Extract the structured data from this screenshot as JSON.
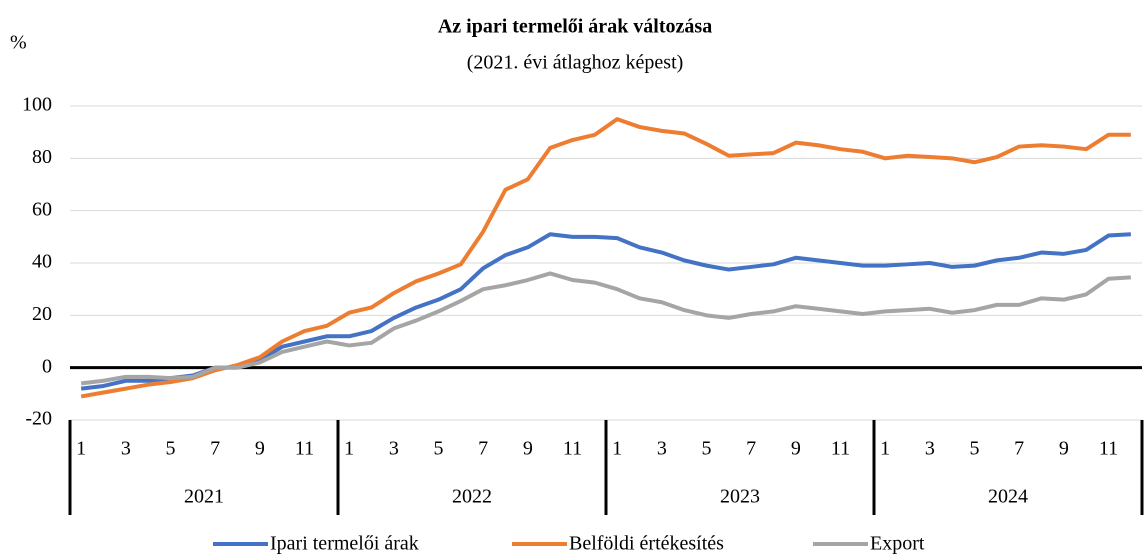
{
  "chart_data": {
    "type": "line",
    "title": "Az ipari termelői árak változása",
    "subtitle": "(2021. évi átlaghoz képest)",
    "y_label": "%",
    "categories": [
      "1",
      null,
      "3",
      null,
      "5",
      null,
      "7",
      null,
      "9",
      null,
      "11",
      null,
      "1",
      null,
      "3",
      null,
      "5",
      null,
      "7",
      null,
      "9",
      null,
      "11",
      null,
      "1",
      null,
      "3",
      null,
      "5",
      null,
      "7",
      null,
      "9",
      null,
      "11",
      null,
      "1",
      null,
      "3",
      null,
      "5",
      null,
      "7",
      null,
      "9",
      null,
      "11",
      null
    ],
    "year_groups": [
      "2021",
      "2022",
      "2023",
      "2024"
    ],
    "series": [
      {
        "name": "Ipari termelői árak",
        "color": "#4472c4",
        "values": [
          -8,
          -7,
          -5,
          -5,
          -4,
          -3,
          0,
          0,
          3,
          8,
          10,
          12,
          12,
          14,
          19,
          23,
          26,
          30,
          38,
          43,
          46,
          51,
          50,
          50,
          49.5,
          46,
          44,
          41,
          39,
          37.5,
          38.5,
          39.5,
          42,
          41,
          40,
          39,
          39,
          39.5,
          40,
          38.5,
          39,
          41,
          42,
          44,
          43.5,
          45,
          50.5,
          51
        ]
      },
      {
        "name": "Belföldi értékesítés",
        "color": "#ed7d31",
        "values": [
          -11,
          -9.5,
          -8,
          -6.5,
          -5.5,
          -4,
          -1,
          1,
          4,
          10,
          14,
          16,
          21,
          23,
          28.5,
          33,
          36,
          39.5,
          52,
          68,
          72,
          84,
          87,
          89,
          95,
          92,
          90.5,
          89.5,
          85.5,
          81,
          81.5,
          82,
          86,
          85,
          83.5,
          82.5,
          80,
          81,
          80.5,
          80,
          78.5,
          80.5,
          84.5,
          85,
          84.5,
          83.5,
          89,
          89
        ]
      },
      {
        "name": "Export",
        "color": "#a5a5a5",
        "values": [
          -6,
          -5,
          -3.5,
          -3.5,
          -4,
          -3.5,
          0,
          0,
          2,
          6,
          8,
          10,
          8.5,
          9.5,
          15,
          18,
          21.5,
          25.5,
          30,
          31.5,
          33.5,
          36,
          33.5,
          32.5,
          30,
          26.5,
          25,
          22,
          20,
          19,
          20.5,
          21.5,
          23.5,
          22.5,
          21.5,
          20.5,
          21.5,
          22,
          22.5,
          21,
          22,
          24,
          24,
          26.5,
          26,
          28,
          34,
          34.5
        ]
      }
    ],
    "ylim": [
      -20,
      100
    ],
    "yticks": [
      -20,
      0,
      20,
      40,
      60,
      80,
      100
    ],
    "grid": true,
    "legend": "bottom"
  }
}
